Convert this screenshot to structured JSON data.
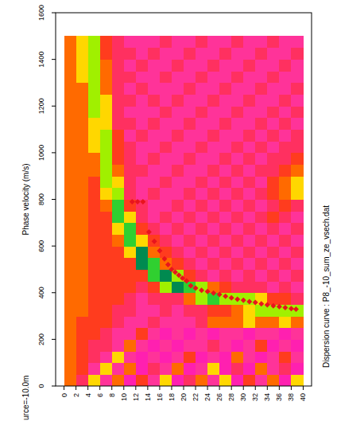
{
  "chart_data": {
    "type": "heatmap",
    "y_label": "Phase velocity (m/s)",
    "annotations": [
      "Dispersion curve : P8_-10_sum_ze_vsech.dat",
      "urce=-10.0m"
    ],
    "xlim": [
      -1.4,
      41.4
    ],
    "ylim": [
      0,
      1600
    ],
    "xticks": [
      0,
      2,
      4,
      6,
      8,
      10,
      12,
      14,
      16,
      18,
      20,
      22,
      24,
      26,
      28,
      30,
      32,
      34,
      36,
      38,
      40
    ],
    "yticks": [
      0,
      200,
      400,
      600,
      800,
      1000,
      1200,
      1400,
      1600
    ],
    "grid": false,
    "zlim": [
      0,
      9
    ],
    "x_edges": [
      0,
      2,
      4,
      6,
      8,
      10,
      12,
      14,
      16,
      18,
      20,
      22,
      24,
      26,
      28,
      30,
      32,
      34,
      36,
      38,
      40
    ],
    "y_edges": [
      0,
      50,
      100,
      150,
      200,
      250,
      300,
      350,
      400,
      450,
      500,
      550,
      600,
      650,
      700,
      750,
      800,
      850,
      900,
      950,
      1000,
      1050,
      1100,
      1150,
      1200,
      1250,
      1300,
      1350,
      1400,
      1450,
      1500
    ],
    "cells": [
      [
        5,
        3,
        6,
        2,
        5,
        1,
        4,
        2,
        6,
        1,
        3,
        5,
        2,
        6,
        1,
        4,
        2,
        5,
        1,
        6
      ],
      [
        5,
        4,
        2,
        6,
        2,
        5,
        1,
        3,
        2,
        5,
        1,
        2,
        6,
        1,
        3,
        1,
        5,
        2,
        3,
        1
      ],
      [
        5,
        4,
        3,
        2,
        6,
        2,
        1,
        2,
        1,
        2,
        4,
        1,
        2,
        1,
        5,
        2,
        1,
        2,
        4,
        2
      ],
      [
        5,
        4,
        3,
        3,
        2,
        5,
        2,
        1,
        2,
        1,
        2,
        2,
        3,
        2,
        1,
        2,
        4,
        1,
        2,
        1
      ],
      [
        5,
        4,
        4,
        3,
        2,
        2,
        4,
        2,
        1,
        2,
        1,
        2,
        1,
        2,
        2,
        1,
        2,
        2,
        1,
        2
      ],
      [
        5,
        4,
        4,
        4,
        3,
        2,
        2,
        3,
        2,
        2,
        2,
        3,
        5,
        5,
        5,
        6,
        5,
        5,
        6,
        5
      ],
      [
        5,
        5,
        4,
        4,
        3,
        3,
        2,
        2,
        3,
        2,
        3,
        3,
        4,
        4,
        5,
        6,
        7,
        7,
        7,
        7
      ],
      [
        5,
        5,
        4,
        4,
        4,
        3,
        2,
        3,
        3,
        3,
        5,
        7,
        8,
        7,
        7,
        7,
        6,
        4,
        4,
        3
      ],
      [
        5,
        5,
        4,
        4,
        4,
        4,
        3,
        4,
        7,
        9,
        8,
        7,
        5,
        4,
        3,
        3,
        3,
        2,
        3,
        2
      ],
      [
        5,
        5,
        4,
        4,
        4,
        4,
        4,
        8,
        9,
        7,
        4,
        3,
        2,
        3,
        2,
        3,
        2,
        3,
        2,
        3
      ],
      [
        5,
        5,
        4,
        4,
        4,
        4,
        9,
        8,
        5,
        4,
        3,
        2,
        3,
        2,
        3,
        2,
        3,
        2,
        3,
        2
      ],
      [
        5,
        5,
        4,
        4,
        4,
        6,
        9,
        5,
        4,
        3,
        2,
        3,
        2,
        3,
        2,
        3,
        2,
        3,
        2,
        3
      ],
      [
        5,
        5,
        4,
        4,
        5,
        8,
        6,
        4,
        3,
        2,
        3,
        2,
        3,
        2,
        3,
        2,
        3,
        2,
        3,
        2
      ],
      [
        5,
        5,
        4,
        4,
        6,
        8,
        4,
        3,
        2,
        3,
        2,
        3,
        2,
        3,
        2,
        3,
        2,
        3,
        2,
        3
      ],
      [
        5,
        5,
        4,
        4,
        8,
        6,
        3,
        2,
        3,
        2,
        3,
        2,
        3,
        2,
        3,
        2,
        3,
        4,
        3,
        2
      ],
      [
        5,
        5,
        4,
        5,
        8,
        4,
        3,
        2,
        2,
        3,
        2,
        3,
        2,
        3,
        2,
        3,
        2,
        3,
        4,
        3
      ],
      [
        5,
        5,
        4,
        6,
        7,
        3,
        2,
        3,
        2,
        2,
        3,
        2,
        3,
        2,
        3,
        2,
        3,
        4,
        5,
        6
      ],
      [
        5,
        5,
        4,
        7,
        6,
        3,
        2,
        2,
        3,
        2,
        2,
        3,
        2,
        3,
        2,
        3,
        2,
        4,
        5,
        6
      ],
      [
        5,
        5,
        5,
        7,
        5,
        3,
        3,
        2,
        2,
        3,
        2,
        2,
        3,
        2,
        3,
        2,
        3,
        3,
        4,
        5
      ],
      [
        5,
        5,
        5,
        7,
        4,
        3,
        2,
        3,
        2,
        2,
        3,
        2,
        2,
        3,
        2,
        3,
        2,
        3,
        3,
        4
      ],
      [
        5,
        5,
        6,
        7,
        4,
        3,
        2,
        2,
        3,
        2,
        2,
        3,
        2,
        2,
        3,
        2,
        3,
        2,
        3,
        3
      ],
      [
        5,
        5,
        6,
        7,
        4,
        2,
        3,
        2,
        2,
        3,
        2,
        2,
        3,
        2,
        2,
        3,
        2,
        3,
        2,
        3
      ],
      [
        5,
        5,
        6,
        6,
        3,
        3,
        2,
        3,
        2,
        2,
        3,
        2,
        2,
        3,
        2,
        2,
        3,
        2,
        3,
        2
      ],
      [
        5,
        5,
        7,
        6,
        3,
        2,
        2,
        2,
        3,
        2,
        2,
        3,
        2,
        2,
        3,
        2,
        2,
        3,
        2,
        3
      ],
      [
        5,
        5,
        7,
        6,
        3,
        3,
        2,
        3,
        2,
        3,
        2,
        2,
        3,
        2,
        2,
        3,
        2,
        2,
        3,
        2
      ],
      [
        5,
        5,
        7,
        5,
        3,
        2,
        3,
        2,
        2,
        2,
        3,
        2,
        2,
        3,
        2,
        2,
        3,
        2,
        2,
        3
      ],
      [
        5,
        6,
        7,
        5,
        3,
        3,
        2,
        2,
        3,
        2,
        2,
        3,
        2,
        2,
        3,
        2,
        2,
        3,
        2,
        2
      ],
      [
        5,
        6,
        7,
        5,
        3,
        2,
        3,
        2,
        2,
        3,
        2,
        2,
        3,
        2,
        2,
        3,
        2,
        2,
        3,
        2
      ],
      [
        5,
        6,
        7,
        4,
        3,
        3,
        2,
        3,
        2,
        2,
        3,
        2,
        2,
        3,
        2,
        2,
        3,
        2,
        2,
        3
      ],
      [
        5,
        6,
        7,
        4,
        3,
        2,
        2,
        2,
        3,
        2,
        2,
        3,
        2,
        2,
        3,
        2,
        2,
        3,
        2,
        2
      ]
    ],
    "series": [
      {
        "type": "scatter",
        "color": "#e8141e",
        "marker": "diamond",
        "x": [
          11.4,
          12.3,
          13.2,
          14.2,
          15.1,
          16.0,
          16.8,
          17.4,
          18.0,
          18.6,
          19.2,
          19.8,
          20.5,
          21.2,
          22.0,
          23.0,
          24.0,
          25.0,
          26.0,
          27.0,
          28.0,
          29.0,
          30.0,
          31.0,
          32.0,
          33.0,
          34.0,
          35.0,
          36.0,
          37.0,
          38.0,
          38.8
        ],
        "values": [
          790,
          790,
          790,
          660,
          620,
          580,
          545,
          520,
          500,
          488,
          475,
          462,
          450,
          430,
          420,
          410,
          405,
          398,
          392,
          385,
          378,
          372,
          368,
          362,
          358,
          352,
          348,
          344,
          340,
          336,
          332,
          329
        ]
      }
    ]
  }
}
